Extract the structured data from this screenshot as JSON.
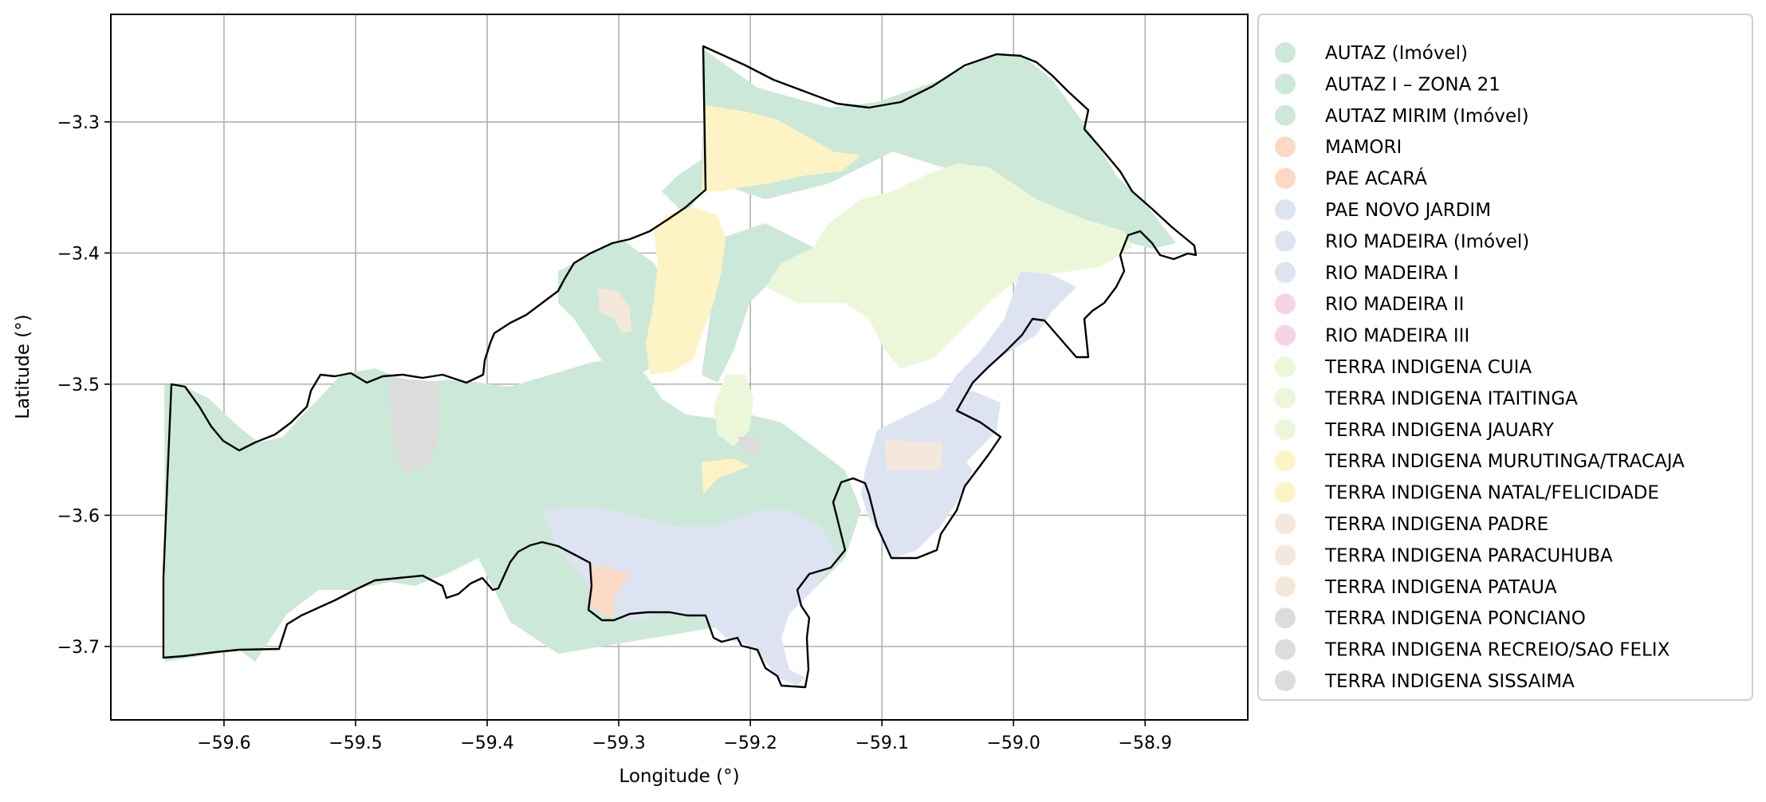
{
  "axes": {
    "xlabel": "Longitude (°)",
    "ylabel": "Latitude (°)",
    "xlim": [
      -59.686,
      -58.822
    ],
    "ylim": [
      -3.756,
      -3.218
    ],
    "xticks": [
      {
        "value": -59.6,
        "label": "−59.6"
      },
      {
        "value": -59.5,
        "label": "−59.5"
      },
      {
        "value": -59.4,
        "label": "−59.4"
      },
      {
        "value": -59.3,
        "label": "−59.3"
      },
      {
        "value": -59.2,
        "label": "−59.2"
      },
      {
        "value": -59.1,
        "label": "−59.1"
      },
      {
        "value": -59.0,
        "label": "−59.0"
      },
      {
        "value": -58.9,
        "label": "−58.9"
      }
    ],
    "yticks": [
      {
        "value": -3.3,
        "label": "−3.3"
      },
      {
        "value": -3.4,
        "label": "−3.4"
      },
      {
        "value": -3.5,
        "label": "−3.5"
      },
      {
        "value": -3.6,
        "label": "−3.6"
      },
      {
        "value": -3.7,
        "label": "−3.7"
      }
    ],
    "grid": true
  },
  "legend": {
    "placement": "outside-right",
    "items": [
      {
        "label": "AUTAZ (Imóvel)",
        "color": "#cce8d8"
      },
      {
        "label": "AUTAZ I – ZONA 21",
        "color": "#cce8d8"
      },
      {
        "label": "AUTAZ MIRIM (Imóvel)",
        "color": "#cce8d8"
      },
      {
        "label": "MAMORI",
        "color": "#fbd9c4"
      },
      {
        "label": "PAE ACARÁ",
        "color": "#fbd9c4"
      },
      {
        "label": "PAE NOVO JARDIM",
        "color": "#dde3f1"
      },
      {
        "label": "RIO MADEIRA (Imóvel)",
        "color": "#dde3f1"
      },
      {
        "label": "RIO MADEIRA I",
        "color": "#dde3f1"
      },
      {
        "label": "RIO MADEIRA II",
        "color": "#f6d4e6"
      },
      {
        "label": "RIO MADEIRA III",
        "color": "#f6d4e6"
      },
      {
        "label": "TERRA INDIGENA CUIA",
        "color": "#ecf7da"
      },
      {
        "label": "TERRA INDIGENA ITAITINGA",
        "color": "#ecf7da"
      },
      {
        "label": "TERRA INDIGENA JAUARY",
        "color": "#ecf7da"
      },
      {
        "label": "TERRA INDIGENA MURUTINGA/TRACAJA",
        "color": "#fdf3c4"
      },
      {
        "label": "TERRA INDIGENA NATAL/FELICIDADE",
        "color": "#fdf3c4"
      },
      {
        "label": "TERRA INDIGENA PADRE",
        "color": "#f3e8db"
      },
      {
        "label": "TERRA INDIGENA PARACUHUBA",
        "color": "#f3e8db"
      },
      {
        "label": "TERRA INDIGENA PATAUA",
        "color": "#f3e8db"
      },
      {
        "label": "TERRA INDIGENA PONCIANO",
        "color": "#dcdcdc"
      },
      {
        "label": "TERRA INDIGENA RECREIO/SAO FELIX",
        "color": "#dcdcdc"
      },
      {
        "label": "TERRA INDIGENA SISSAIMA",
        "color": "#dcdcdc"
      }
    ]
  },
  "colors": {
    "green": "#cce8d8",
    "lime": "#ecf7da",
    "yellow": "#fdf3c4",
    "blue": "#dde3f1",
    "orange": "#fbd9c4",
    "beige": "#f3e8db",
    "gray": "#dcdcdc",
    "outline": "#000000"
  }
}
